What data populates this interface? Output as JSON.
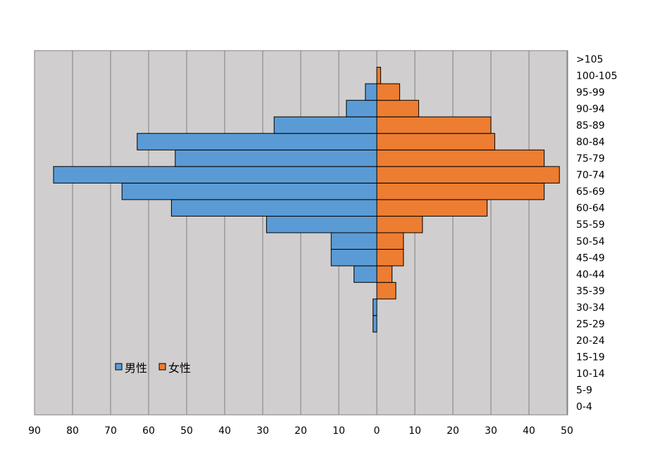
{
  "chart_data": {
    "type": "bar",
    "orientation": "horizontal",
    "layout": "population-pyramid",
    "categories": [
      "0-4",
      "5-9",
      "10-14",
      "15-19",
      "20-24",
      "25-29",
      "30-34",
      "35-39",
      "40-44",
      "45-49",
      "50-54",
      "55-59",
      "60-64",
      "65-69",
      "70-74",
      "75-79",
      "80-84",
      "85-89",
      "90-94",
      "95-99",
      "100-105",
      ">105"
    ],
    "series": [
      {
        "name": "男性",
        "color": "#5B9BD5",
        "side": "left",
        "values": [
          0,
          0,
          0,
          0,
          0,
          1,
          1,
          0,
          6,
          12,
          12,
          29,
          54,
          67,
          85,
          53,
          63,
          27,
          8,
          3,
          0,
          0
        ]
      },
      {
        "name": "女性",
        "color": "#ED7D31",
        "side": "right",
        "values": [
          0,
          0,
          0,
          0,
          0,
          0,
          0,
          5,
          4,
          7,
          7,
          12,
          29,
          44,
          48,
          44,
          31,
          30,
          11,
          6,
          1,
          0
        ]
      }
    ],
    "x_ticks_left": [
      90,
      80,
      70,
      60,
      50,
      40,
      30,
      20,
      10
    ],
    "x_ticks_right": [
      0,
      10,
      20,
      30,
      40,
      50
    ],
    "xlim_left": 90,
    "xlim_right": 50,
    "grid": "vertical",
    "plot_background": "#D0CECE",
    "legend_position": "lower-left",
    "title": "",
    "xlabel": "",
    "ylabel": ""
  }
}
